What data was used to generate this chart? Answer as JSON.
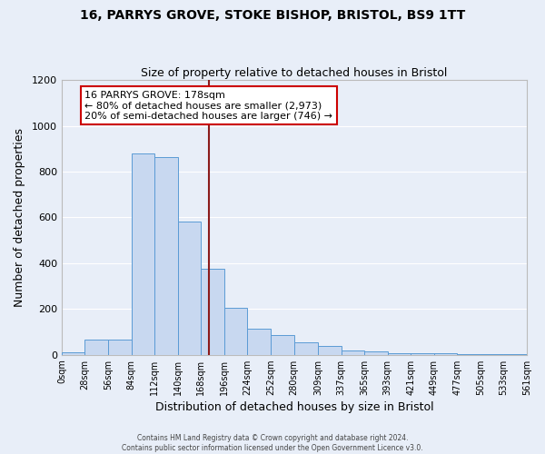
{
  "title": "16, PARRYS GROVE, STOKE BISHOP, BRISTOL, BS9 1TT",
  "subtitle": "Size of property relative to detached houses in Bristol",
  "xlabel": "Distribution of detached houses by size in Bristol",
  "ylabel": "Number of detached properties",
  "bar_color": "#c8d8f0",
  "bar_edge_color": "#5b9bd5",
  "background_color": "#e8eef8",
  "grid_color": "#ffffff",
  "bin_edges": [
    0,
    28,
    56,
    84,
    112,
    140,
    168,
    196,
    224,
    252,
    280,
    309,
    337,
    365,
    393,
    421,
    449,
    477,
    505,
    533,
    561
  ],
  "bar_heights": [
    10,
    65,
    65,
    880,
    865,
    580,
    375,
    205,
    115,
    85,
    55,
    40,
    20,
    15,
    5,
    5,
    5,
    3,
    3,
    3
  ],
  "property_size": 178,
  "red_line_color": "#8b1a1a",
  "annotation_line1": "16 PARRYS GROVE: 178sqm",
  "annotation_line2": "← 80% of detached houses are smaller (2,973)",
  "annotation_line3": "20% of semi-detached houses are larger (746) →",
  "annotation_box_color": "#ffffff",
  "annotation_box_edge_color": "#cc0000",
  "ylim": [
    0,
    1200
  ],
  "yticks": [
    0,
    200,
    400,
    600,
    800,
    1000,
    1200
  ],
  "footer_line1": "Contains HM Land Registry data © Crown copyright and database right 2024.",
  "footer_line2": "Contains public sector information licensed under the Open Government Licence v3.0."
}
